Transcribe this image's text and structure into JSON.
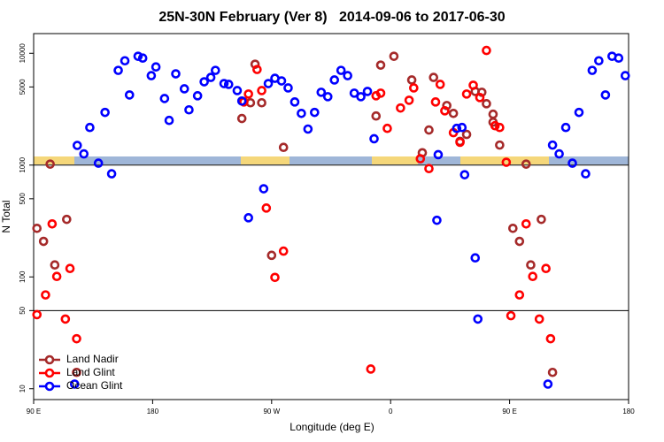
{
  "chart_data": {
    "type": "scatter",
    "title": "25N-30N February (Ver 8)   2014-09-06 to 2017-06-30",
    "x_label": "Longitude (deg E)",
    "y_label": "N Total",
    "xlim": [
      90,
      540
    ],
    "xticks": [
      {
        "value": 90,
        "label": "90 E"
      },
      180,
      {
        "value": 270,
        "label": "90 W"
      },
      {
        "value": 360,
        "label": "0"
      },
      {
        "value": 450,
        "label": "90 E"
      },
      {
        "value": 540,
        "label": "180"
      }
    ],
    "ylim": [
      8,
      15000
    ],
    "yticks": [
      10,
      50,
      100,
      500,
      1000,
      5000,
      10000
    ],
    "y_log": true,
    "hlines": [
      50,
      1000
    ],
    "legend": "lower left",
    "series": [
      {
        "name": "Land Nadir",
        "color": "#a52a2a",
        "x": [
          92.5,
          97.5,
          102.5,
          106,
          115,
          122.5,
          247.5,
          254,
          257.5,
          262.5,
          270,
          279,
          349,
          352.5,
          362.5,
          376,
          384,
          389,
          392.5,
          402.5,
          407.5,
          412.5,
          417.5,
          424,
          429,
          432.5,
          437.5,
          437.5,
          442.5,
          452.5,
          457.5,
          462.5,
          466,
          474,
          482.5
        ],
        "values": [
          272,
          208,
          1020,
          128,
          327,
          14,
          2610,
          3610,
          7980,
          3610,
          156,
          1440,
          2750,
          7840,
          9400,
          5770,
          1290,
          2060,
          6080,
          3410,
          2900,
          1630,
          1880,
          4560,
          4480,
          3540,
          2850,
          2420,
          1510,
          272,
          208,
          1020,
          128,
          327,
          14
        ]
      },
      {
        "name": "Land Glint",
        "color": "#ff0000",
        "x": [
          92.5,
          99,
          104,
          107.5,
          114,
          117.5,
          122.5,
          249,
          252.5,
          259,
          262.5,
          266,
          272.5,
          279,
          345,
          349,
          352.5,
          357.5,
          367.5,
          374,
          377.5,
          382.5,
          389,
          394,
          397.5,
          401,
          407.5,
          412.5,
          417.5,
          422.5,
          427.5,
          432.5,
          439,
          442.5,
          447.5,
          451,
          457.5,
          462.5,
          467.5,
          472.5,
          477.5,
          481
        ],
        "values": [
          46,
          69,
          298,
          101,
          42,
          119,
          28,
          3670,
          4320,
          7160,
          4640,
          413,
          99,
          170,
          15,
          4170,
          4400,
          2130,
          3240,
          3800,
          4900,
          1140,
          931,
          3670,
          5270,
          3060,
          1950,
          1600,
          4320,
          5180,
          4020,
          10600,
          2250,
          2170,
          1060,
          45,
          69,
          298,
          101,
          42,
          119,
          28
        ]
      },
      {
        "name": "Ocean Glint",
        "color": "#0000ff",
        "x": [
          123,
          128,
          132.5,
          139,
          144,
          149,
          154,
          159,
          162.5,
          169,
          172.5,
          179,
          182.5,
          189,
          192.5,
          197.5,
          204,
          207.5,
          214,
          219,
          224,
          227.5,
          234,
          237.5,
          244,
          247.5,
          252.5,
          264,
          267.5,
          272.5,
          277.5,
          282.5,
          287.5,
          292.5,
          297.5,
          302.5,
          307.5,
          312.5,
          317.5,
          322.5,
          327.5,
          332.5,
          337.5,
          342.5,
          347.5,
          395,
          396,
          410,
          414,
          416,
          424,
          426,
          479,
          482.5,
          487.5,
          492.5,
          497.5,
          502.5,
          507.5,
          512.5,
          517.5,
          522.5,
          527.5,
          532.5,
          537.5,
          121
        ],
        "values": [
          1500,
          1260,
          2170,
          1040,
          2960,
          836,
          7030,
          8570,
          4240,
          9400,
          9060,
          6310,
          7550,
          3940,
          2510,
          6550,
          4810,
          3120,
          4170,
          5560,
          6080,
          7030,
          5360,
          5270,
          4640,
          3740,
          338,
          614,
          5360,
          5970,
          5660,
          4900,
          3670,
          2900,
          2100,
          2960,
          4480,
          4090,
          5770,
          7030,
          6310,
          4400,
          4090,
          4560,
          1720,
          321,
          1240,
          2130,
          2170,
          820,
          148,
          42,
          11,
          1510,
          1260,
          2170,
          1040,
          2960,
          836,
          7030,
          8570,
          4240,
          9400,
          9060,
          6310,
          11
        ]
      }
    ]
  }
}
